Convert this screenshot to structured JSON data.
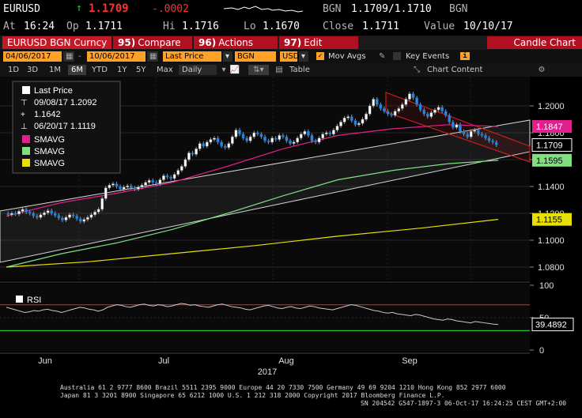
{
  "header": {
    "ticker": "EURUSD",
    "arrow": "↑",
    "last_price": "1.1709",
    "change": "-.0002",
    "source_left": "BGN",
    "bid_ask": "1.1709/1.1710",
    "source_right": "BGN",
    "at_label": "At",
    "time": "16:24",
    "op_label": "Op",
    "open": "1.1711",
    "hi_label": "Hi",
    "high": "1.1716",
    "lo_label": "Lo",
    "low": "1.1670",
    "close_label": "Close",
    "close": "1.1711",
    "value_label": "Value",
    "value_date": "10/10/17"
  },
  "function_bar": {
    "security": "EURUSD BGN Curncy",
    "compare_num": "95)",
    "compare": "Compare",
    "actions_num": "96)",
    "actions": "Actions",
    "edit_num": "97)",
    "edit": "Edit",
    "chart_type": "Candle Chart"
  },
  "params": {
    "start_date": "04/06/2017",
    "end_date": "10/06/2017",
    "field": "Last Price",
    "source": "BGN",
    "currency": "USD",
    "mov_avgs": "Mov Avgs",
    "key_events": "Key Events"
  },
  "periods": [
    "1D",
    "3D",
    "1M",
    "6M",
    "YTD",
    "1Y",
    "5Y",
    "Max"
  ],
  "selected_period": "6M",
  "frequency": "Daily",
  "table_label": "Table",
  "chart_content_label": "Chart Content",
  "legend": {
    "last_price": "Last Price",
    "high_entry": "09/08/17 1.2092",
    "mid_entry": "1.1642",
    "low_entry": "06/20/17 1.1119",
    "smavg1": "SMAVG",
    "smavg2": "SMAVG",
    "smavg3": "SMAVG",
    "rsi": "RSI"
  },
  "colors": {
    "sma_short": "#e0208c",
    "sma_mid": "#80e080",
    "sma_long": "#e8e000",
    "candle_up": "#ffffff",
    "candle_down": "#2888e8",
    "channel_down": "#c81e1e",
    "rsi_line": "#c8c8c8",
    "rsi_upper": "#e01010",
    "rsi_lower": "#20c020",
    "accent": "#ffa028",
    "panel_bg": "#0c0c0c"
  },
  "price_tags": {
    "sma_short": "1.1847",
    "last": "1.1709",
    "sma_mid": "1.1595",
    "sma_long": "1.1155"
  },
  "rsi_tag": "39.4892",
  "chart_data": {
    "type": "candlestick",
    "x_labels": [
      "Jun",
      "Jul",
      "Aug",
      "Sep"
    ],
    "x_year": "2017",
    "y_ticks": [
      "1.2000",
      "1.1800",
      "1.1600",
      "1.1400",
      "1.1200",
      "1.1000",
      "1.0800"
    ],
    "ylim": [
      1.07,
      1.22
    ],
    "rsi_ticks": [
      "100",
      "50",
      "0"
    ],
    "rsi_ylim": [
      0,
      100
    ],
    "rsi_bands": [
      70,
      30
    ],
    "series": [
      {
        "name": "SMAVG",
        "role": "short",
        "x": [
          0,
          20,
          40,
          60,
          80,
          100,
          120,
          140,
          160,
          178
        ],
        "y": [
          1.118,
          1.128,
          1.135,
          1.143,
          1.155,
          1.168,
          1.178,
          1.183,
          1.186,
          1.1847
        ]
      },
      {
        "name": "SMAVG",
        "role": "mid",
        "x": [
          0,
          20,
          40,
          60,
          80,
          100,
          120,
          140,
          160,
          178
        ],
        "y": [
          1.08,
          1.09,
          1.098,
          1.108,
          1.12,
          1.133,
          1.145,
          1.152,
          1.157,
          1.1595
        ]
      },
      {
        "name": "SMAVG",
        "role": "long",
        "x": [
          0,
          30,
          60,
          90,
          120,
          150,
          178
        ],
        "y": [
          1.08,
          1.084,
          1.09,
          1.096,
          1.103,
          1.109,
          1.1155
        ]
      }
    ],
    "rsi": [
      66,
      64,
      62,
      60,
      58,
      59,
      61,
      60,
      62,
      63,
      61,
      60,
      58,
      60,
      62,
      64,
      66,
      65,
      63,
      62,
      60,
      62,
      66,
      68,
      70,
      69,
      67,
      66,
      68,
      70,
      71,
      69,
      68,
      70,
      69,
      67,
      68,
      70,
      72,
      71,
      69,
      70,
      68,
      67,
      66,
      68,
      70,
      71,
      69,
      67,
      66,
      65,
      63,
      62,
      64,
      66,
      68,
      69,
      67,
      65,
      64,
      66,
      67,
      65,
      64,
      66,
      68,
      67,
      65,
      64,
      63,
      62,
      64,
      66,
      68,
      70,
      69,
      67,
      65,
      63,
      61,
      60,
      58,
      57,
      58,
      56,
      55,
      54,
      53,
      55,
      54,
      52,
      50,
      48,
      47,
      46,
      48,
      47,
      45,
      44,
      43,
      42,
      44,
      43,
      42,
      41,
      40,
      39.49
    ],
    "close": [
      1.119,
      1.12,
      1.1195,
      1.1215,
      1.123,
      1.121,
      1.12,
      1.118,
      1.117,
      1.119,
      1.1205,
      1.122,
      1.12,
      1.1185,
      1.1165,
      1.115,
      1.117,
      1.119,
      1.118,
      1.116,
      1.114,
      1.1155,
      1.117,
      1.119,
      1.121,
      1.123,
      1.131,
      1.139,
      1.141,
      1.142,
      1.14,
      1.138,
      1.1395,
      1.1405,
      1.139,
      1.138,
      1.1395,
      1.141,
      1.143,
      1.1445,
      1.143,
      1.142,
      1.145,
      1.148,
      1.147,
      1.146,
      1.149,
      1.152,
      1.155,
      1.16,
      1.165,
      1.164,
      1.168,
      1.172,
      1.17,
      1.173,
      1.175,
      1.176,
      1.173,
      1.17,
      1.169,
      1.172,
      1.177,
      1.182,
      1.179,
      1.176,
      1.174,
      1.177,
      1.18,
      1.179,
      1.177,
      1.174,
      1.173,
      1.176,
      1.175,
      1.178,
      1.177,
      1.174,
      1.172,
      1.173,
      1.176,
      1.179,
      1.181,
      1.178,
      1.174,
      1.173,
      1.176,
      1.179,
      1.18,
      1.179,
      1.182,
      1.185,
      1.188,
      1.191,
      1.192,
      1.189,
      1.186,
      1.187,
      1.19,
      1.194,
      1.2,
      1.205,
      1.201,
      1.198,
      1.196,
      1.194,
      1.193,
      1.196,
      1.198,
      1.201,
      1.205,
      1.209,
      1.206,
      1.201,
      1.197,
      1.194,
      1.192,
      1.195,
      1.197,
      1.199,
      1.196,
      1.193,
      1.188,
      1.184,
      1.186,
      1.181,
      1.179,
      1.177,
      1.181,
      1.182,
      1.179,
      1.178,
      1.176,
      1.174,
      1.173,
      1.1709
    ]
  }
}
